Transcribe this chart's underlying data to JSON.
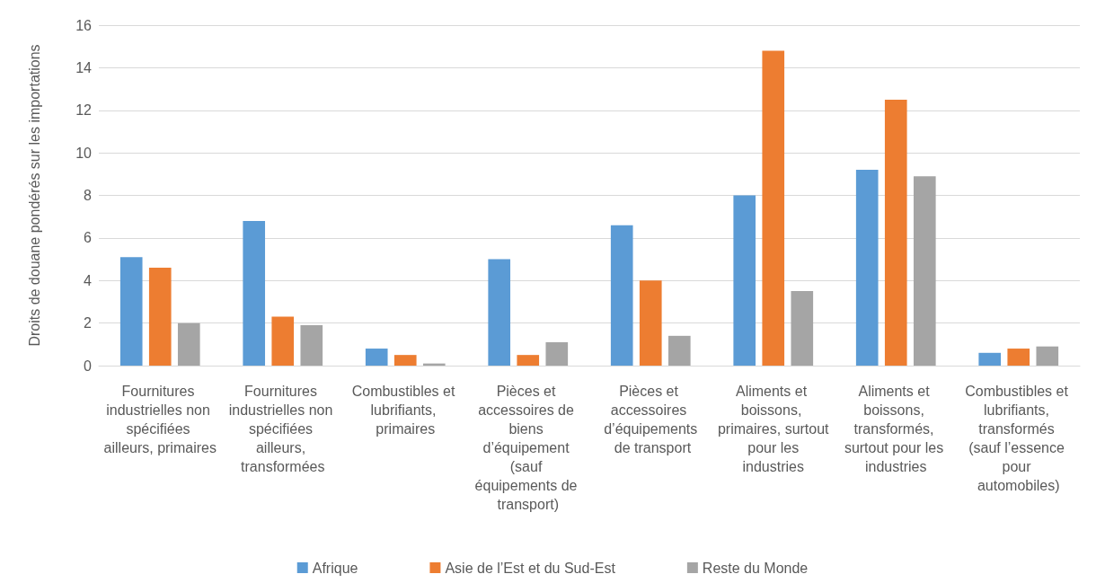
{
  "chart_data": {
    "type": "bar",
    "ylabel": "Droits de douane pondérés sur les importations",
    "categories": [
      "Fournitures industrielles non spécifiées ailleurs, primaires",
      "Fournitures industrielles non spécifiées ailleurs, transformées",
      "Combustibles et lubrifiants, primaires",
      "Pièces et accessoires de biens d’équipement (sauf équipements de transport)",
      "Pièces et accessoires d’équipements de transport",
      "Aliments et boissons, primaires, surtout pour les industries",
      "Aliments et boissons, transformés, surtout pour les industries",
      "Combustibles et lubrifiants, transformés (sauf l’essence pour automobiles)"
    ],
    "series": [
      {
        "name": "Afrique",
        "color": "#5b9bd5",
        "values": [
          5.1,
          6.8,
          0.8,
          5.0,
          6.6,
          8.0,
          9.2,
          0.6
        ]
      },
      {
        "name": "Asie de l’Est et du Sud-Est",
        "color": "#ed7d31",
        "values": [
          4.6,
          2.3,
          0.5,
          0.5,
          4.0,
          14.8,
          12.5,
          0.8
        ]
      },
      {
        "name": "Reste du Monde",
        "color": "#a5a5a5",
        "values": [
          2.0,
          1.9,
          0.1,
          1.1,
          1.4,
          3.5,
          8.9,
          0.9
        ]
      }
    ],
    "ylim": [
      0,
      16
    ],
    "yticks": [
      0,
      2,
      4,
      6,
      8,
      10,
      12,
      14,
      16
    ],
    "grid": "y",
    "legend": "bottom"
  }
}
